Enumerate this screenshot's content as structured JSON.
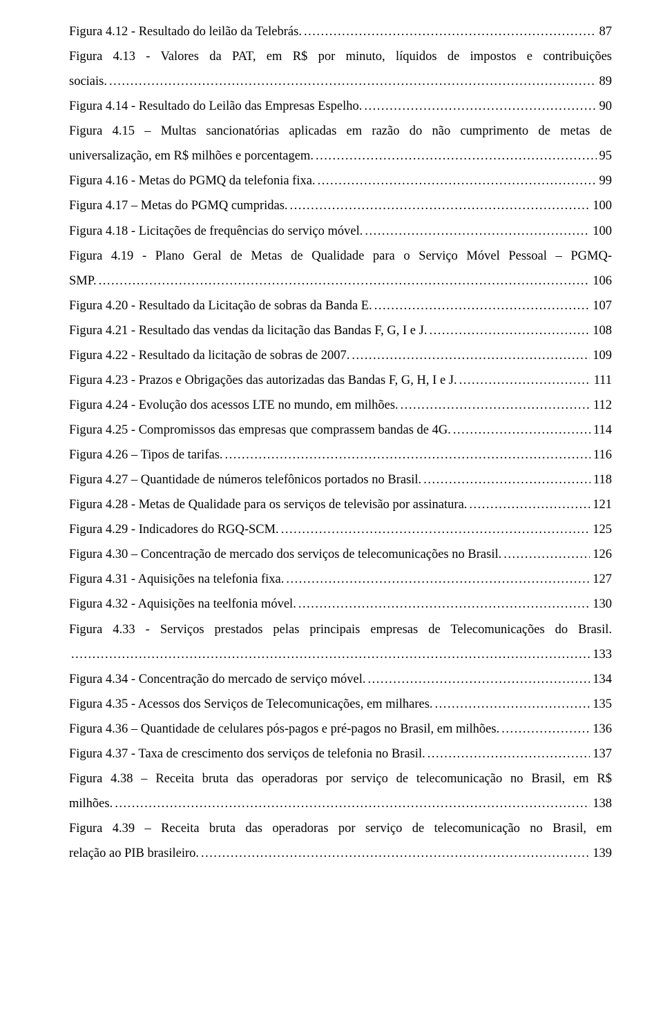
{
  "entries": [
    {
      "label": "Figura 4.12 - Resultado do leilão da Telebrás.",
      "page": "87",
      "wrap": false
    },
    {
      "label_lines": [
        "Figura 4.13 - Valores da PAT, em R$ por minuto, líquidos de impostos e contribuições",
        "sociais."
      ],
      "page": "89",
      "wrap": true
    },
    {
      "label": "Figura 4.14 - Resultado do Leilão das Empresas Espelho.",
      "page": "90",
      "wrap": false
    },
    {
      "label_lines": [
        "Figura 4.15 – Multas sancionatórias aplicadas em razão do não cumprimento de metas de",
        "universalização, em R$ milhões e porcentagem."
      ],
      "page": "95",
      "wrap": true
    },
    {
      "label": "Figura 4.16 - Metas do PGMQ da telefonia fixa.",
      "page": "99",
      "wrap": false
    },
    {
      "label": "Figura 4.17 – Metas do PGMQ cumpridas.",
      "page": "100",
      "wrap": false
    },
    {
      "label": "Figura 4.18 - Licitações de frequências do serviço móvel.",
      "page": "100",
      "wrap": false
    },
    {
      "label_lines": [
        "Figura 4.19 - Plano Geral de Metas de Qualidade para o Serviço Móvel Pessoal – PGMQ-",
        "SMP."
      ],
      "page": "106",
      "wrap": true
    },
    {
      "label": "Figura 4.20 - Resultado da Licitação de sobras da Banda E.",
      "page": "107",
      "wrap": false
    },
    {
      "label": "Figura 4.21 - Resultado das vendas da licitação das Bandas F, G, I e J.",
      "page": "108",
      "wrap": false
    },
    {
      "label": "Figura 4.22 - Resultado da licitação de sobras de 2007.",
      "page": "109",
      "wrap": false
    },
    {
      "label": "Figura 4.23 - Prazos e Obrigações das autorizadas das Bandas F, G, H, I e J.",
      "page": "111",
      "wrap": false
    },
    {
      "label": "Figura 4.24 - Evolução dos acessos LTE no mundo, em milhões.",
      "page": "112",
      "wrap": false
    },
    {
      "label": "Figura 4.25 - Compromissos das empresas que comprassem bandas de 4G.",
      "page": "114",
      "wrap": false
    },
    {
      "label": "Figura 4.26 – Tipos de tarifas.",
      "page": "116",
      "wrap": false
    },
    {
      "label": "Figura 4.27 – Quantidade de números telefônicos portados no Brasil.",
      "page": "118",
      "wrap": false
    },
    {
      "label": "Figura 4.28 - Metas de Qualidade para os serviços de televisão por assinatura.",
      "page": "121",
      "wrap": false
    },
    {
      "label": "Figura 4.29 - Indicadores do RGQ-SCM.",
      "page": "125",
      "wrap": false
    },
    {
      "label": "Figura 4.30 – Concentração de mercado dos serviços de telecomunicações no Brasil.",
      "page": "126",
      "wrap": false
    },
    {
      "label": "Figura 4.31 - Aquisições na telefonia fixa.",
      "page": "127",
      "wrap": false
    },
    {
      "label": "Figura 4.32 - Aquisições na teelfonia móvel.",
      "page": "130",
      "wrap": false
    },
    {
      "label_lines": [
        "Figura 4.33 - Serviços prestados pelas principais empresas de Telecomunicações do Brasil.",
        ""
      ],
      "page": "133",
      "wrap": true
    },
    {
      "label": "Figura 4.34 - Concentração do mercado de serviço móvel.",
      "page": "134",
      "wrap": false
    },
    {
      "label": "Figura 4.35 - Acessos dos Serviços de Telecomunicações, em milhares.",
      "page": "135",
      "wrap": false
    },
    {
      "label": "Figura 4.36 – Quantidade de celulares pós-pagos e pré-pagos no Brasil, em milhões.",
      "page": "136",
      "wrap": false
    },
    {
      "label": "Figura 4.37 - Taxa de crescimento dos serviços de telefonia no Brasil.",
      "page": "137",
      "wrap": false
    },
    {
      "label_lines": [
        "Figura 4.38 – Receita bruta das operadoras por serviço de telecomunicação no Brasil, em R$",
        "milhões."
      ],
      "page": "138",
      "wrap": true
    },
    {
      "label_lines": [
        "Figura 4.39 – Receita bruta das operadoras por serviço de telecomunicação no Brasil, em",
        "relação ao PIB brasileiro."
      ],
      "page": "139",
      "wrap": true
    }
  ]
}
